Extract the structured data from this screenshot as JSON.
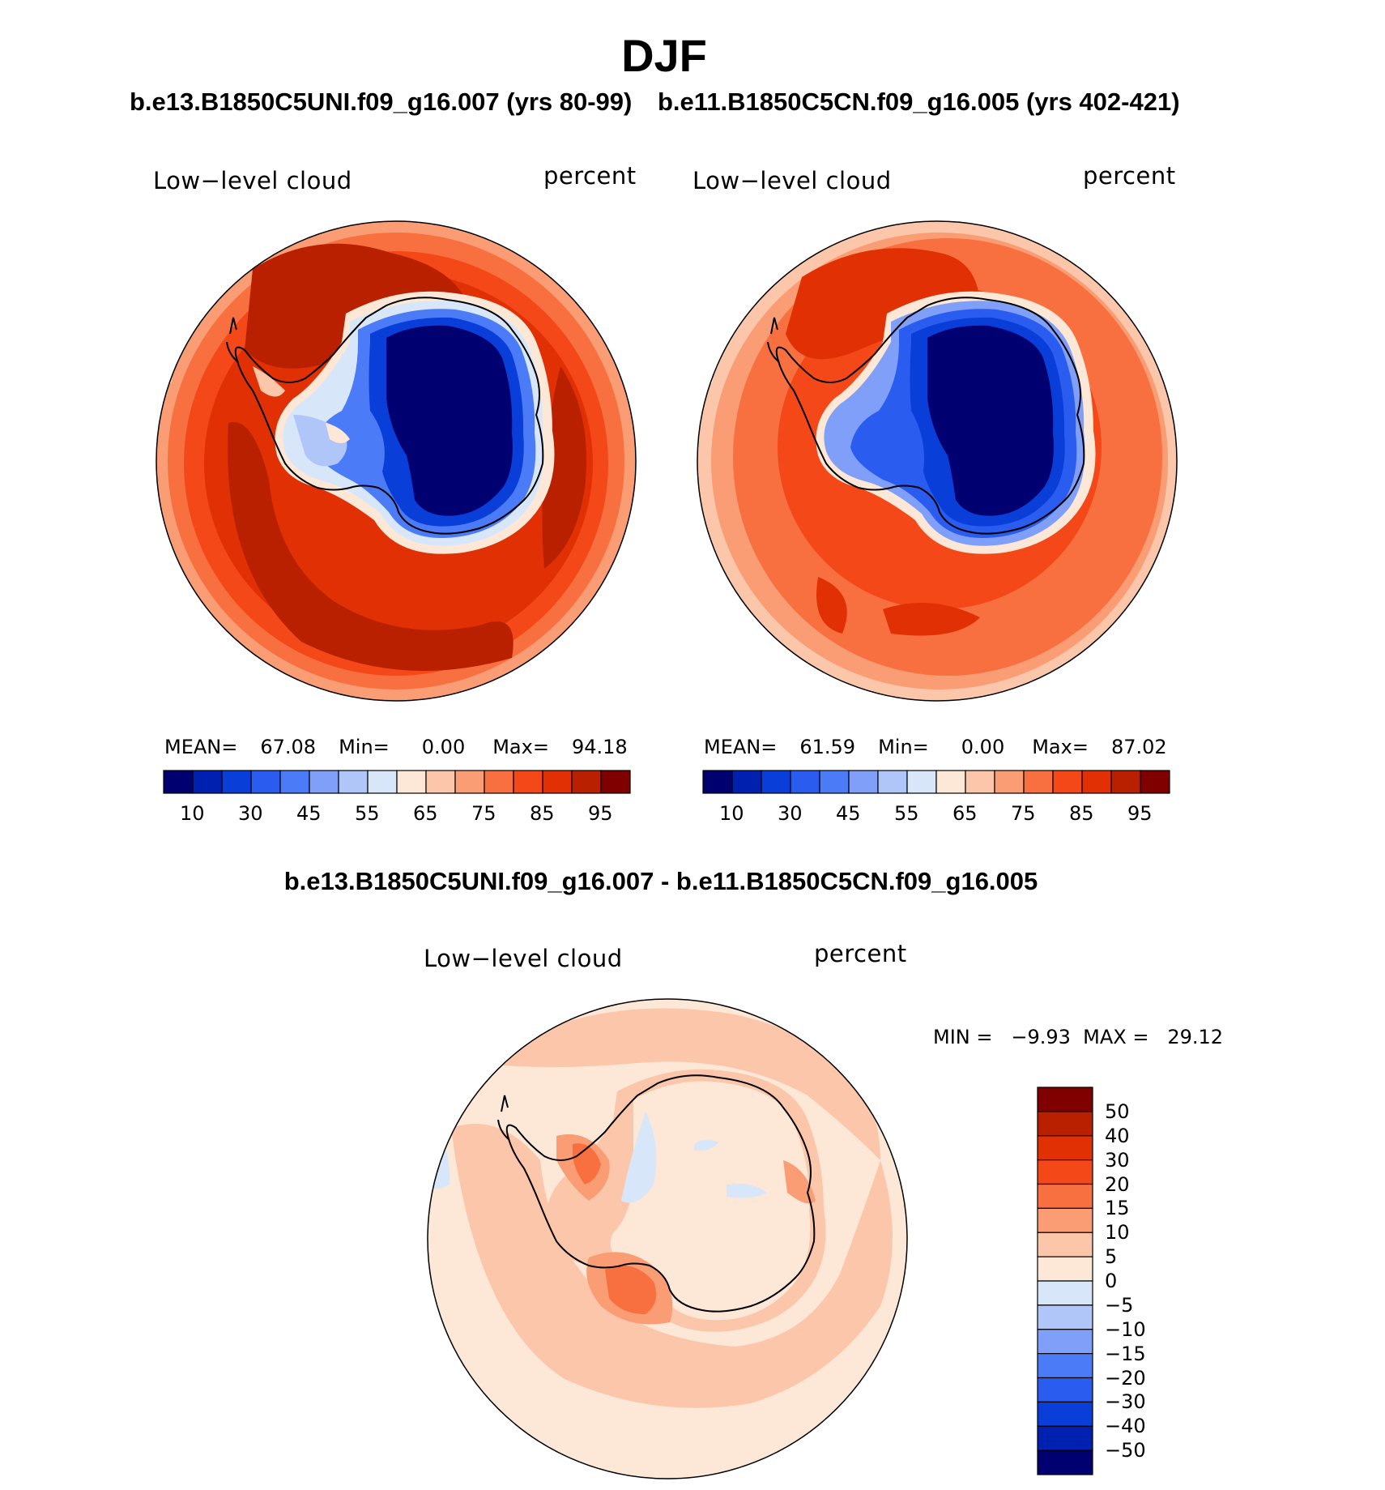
{
  "title": "DJF",
  "panels": [
    {
      "case": "b.e13.B1850C5UNI.f09_g16.007 (yrs 80-99)",
      "variable": "Low−level cloud",
      "units": "percent",
      "stats": {
        "mean_label": "MEAN=",
        "mean": "67.08",
        "min_label": "Min=",
        "min": "0.00",
        "max_label": "Max=",
        "max": "94.18"
      }
    },
    {
      "case": "b.e11.B1850C5CN.f09_g16.005 (yrs 402-421)",
      "variable": "Low−level cloud",
      "units": "percent",
      "stats": {
        "mean_label": "MEAN=",
        "mean": "61.59",
        "min_label": "Min=",
        "min": "0.00",
        "max_label": "Max=",
        "max": "87.02"
      }
    }
  ],
  "colorbar": {
    "colors": [
      "#000070",
      "#0020b0",
      "#0a3ed8",
      "#2a5cf0",
      "#4c7bf8",
      "#7f9ff8",
      "#b0c6f8",
      "#d8e6fa",
      "#fde8d8",
      "#fcc6aa",
      "#fa9c74",
      "#f87040",
      "#f44818",
      "#e03004",
      "#b82000",
      "#800000"
    ],
    "ticks": [
      "10",
      "30",
      "45",
      "55",
      "65",
      "75",
      "85",
      "95"
    ]
  },
  "difference": {
    "title": "b.e13.B1850C5UNI.f09_g16.007 - b.e11.B1850C5CN.f09_g16.005",
    "variable": "Low−level cloud",
    "units": "percent",
    "minmax": "MIN =   −9.93  MAX =   29.12",
    "colorbar": {
      "colors": [
        "#800000",
        "#b82000",
        "#e03004",
        "#f44818",
        "#f87040",
        "#fa9c74",
        "#fcc6aa",
        "#fde8d8",
        "#d8e6fa",
        "#b0c6f8",
        "#7f9ff8",
        "#4c7bf8",
        "#2a5cf0",
        "#0a3ed8",
        "#0020b0",
        "#000070"
      ],
      "ticks": [
        "50",
        "40",
        "30",
        "20",
        "15",
        "10",
        "5",
        "0",
        "−5",
        "−10",
        "−15",
        "−20",
        "−30",
        "−40",
        "−50"
      ]
    }
  }
}
